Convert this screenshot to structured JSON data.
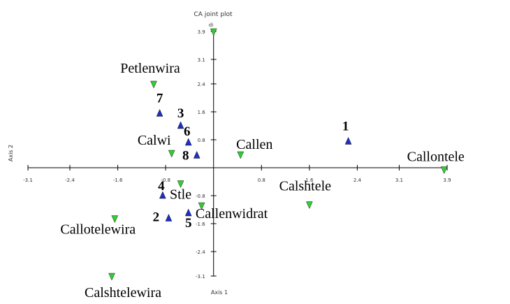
{
  "chart_data": {
    "type": "scatter",
    "title": "CA joint plot",
    "xlabel": "Axis 1",
    "ylabel": "Axis 2",
    "xlim": [
      -3.1,
      3.9
    ],
    "ylim": [
      -3.1,
      3.9
    ],
    "x_ticks": [
      "-3.1",
      "-2.4",
      "-1.6",
      "-0.8",
      "0.8",
      "1.6",
      "2.4",
      "3.1",
      "3.9"
    ],
    "x_tick_values": [
      -3.1,
      -2.4,
      -1.6,
      -0.8,
      0.8,
      1.6,
      2.4,
      3.1,
      3.9
    ],
    "y_ticks": [
      "3.9",
      "3.1",
      "2.4",
      "1.6",
      "0.8",
      "-0.8",
      "-1.6",
      "-2.4",
      "-3.1"
    ],
    "y_tick_values": [
      3.9,
      3.1,
      2.4,
      1.6,
      0.8,
      -0.8,
      -1.6,
      -2.4,
      -3.1
    ],
    "grid": false,
    "colors": {
      "rows": "#1f2fbf",
      "columns": "#33cc33"
    },
    "series": [
      {
        "marker": "triangle-up",
        "points": [
          {
            "label": "1",
            "x": 2.25,
            "y": 0.75
          },
          {
            "label": "2",
            "x": -0.75,
            "y": -1.45
          },
          {
            "label": "3",
            "x": -0.55,
            "y": 1.2
          },
          {
            "label": "4",
            "x": -0.85,
            "y": -0.8
          },
          {
            "label": "5",
            "x": -0.42,
            "y": -1.3
          },
          {
            "label": "6",
            "x": -0.42,
            "y": 0.72
          },
          {
            "label": "7",
            "x": -0.9,
            "y": 1.55
          },
          {
            "label": "8",
            "x": -0.28,
            "y": 0.35
          }
        ]
      },
      {
        "marker": "triangle-down",
        "points": [
          {
            "label": "Petlenwira",
            "x": -1.0,
            "y": 2.4
          },
          {
            "label": "Calwi",
            "x": -0.7,
            "y": 0.42
          },
          {
            "label": "Callen",
            "x": 0.45,
            "y": 0.38
          },
          {
            "label": "Callontele",
            "x": 3.85,
            "y": -0.05
          },
          {
            "label": "Calshtele",
            "x": 1.6,
            "y": -1.05
          },
          {
            "label": "Stle",
            "x": -0.55,
            "y": -0.45
          },
          {
            "label": "Callenwidrat",
            "x": -0.2,
            "y": -1.08
          },
          {
            "label": "Callotelewira",
            "x": -1.65,
            "y": -1.45
          },
          {
            "label": "Calshtelewira",
            "x": -1.7,
            "y": -3.1
          },
          {
            "label": "",
            "x": 0.0,
            "y": 3.9
          }
        ]
      }
    ],
    "y_axis_top_note": "di"
  }
}
